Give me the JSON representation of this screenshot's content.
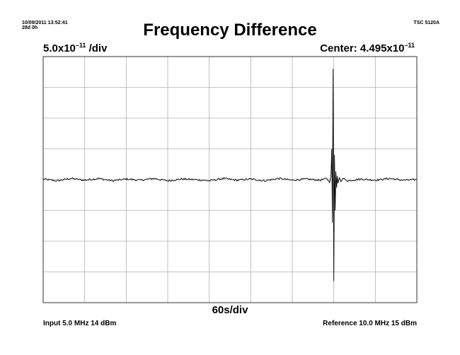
{
  "header": {
    "timestamp_line1": "10/09/2011 13:52:41",
    "timestamp_line2": "28d 0h",
    "model": "TSC 5120A",
    "title": "Frequency Difference"
  },
  "scale": {
    "prefix": "5.0x10",
    "exponent": "–11",
    "suffix": " /div"
  },
  "center": {
    "prefix": "Center: 4.495x10",
    "exponent": "–11"
  },
  "x_scale_label": "60s/div",
  "footer": {
    "input": "Input 5.0 MHz 14 dBm",
    "reference": "Reference 10.0 MHz 15 dBm"
  },
  "colors": {
    "trace": "#000000",
    "grid": "#b0b0b0",
    "frame": "#000000"
  },
  "chart_data": {
    "type": "line",
    "title": "Frequency Difference",
    "xlabel": "60s/div",
    "ylabel": "5.0x10–11 /div",
    "x_divisions": 9,
    "y_divisions": 8,
    "x_unit_per_div": 60,
    "y_unit_per_div": 5e-11,
    "y_center": 4.495e-11,
    "xlim": [
      0,
      540
    ],
    "ylim": [
      -2e-10,
      2e-10
    ],
    "grid": true,
    "series": [
      {
        "x": [
          0,
          20,
          40,
          60,
          80,
          100,
          120,
          140,
          160,
          180,
          200,
          220,
          240,
          260,
          280,
          300,
          320,
          340,
          360,
          380,
          400,
          410,
          414,
          416,
          417,
          418,
          419,
          420,
          421,
          422,
          423,
          424,
          425,
          426,
          428,
          430,
          434,
          440,
          460,
          480,
          500,
          520,
          540
        ],
        "y": [
          1e-12,
          -2e-12,
          2e-12,
          -1e-12,
          2e-12,
          -2e-12,
          1e-12,
          -1e-12,
          2e-12,
          -2e-12,
          1e-12,
          0,
          -2e-12,
          2e-12,
          -1e-12,
          1e-12,
          -2e-12,
          2e-12,
          -1e-12,
          1e-12,
          -1e-12,
          2e-12,
          -5e-12,
          8e-12,
          5e-11,
          -7e-11,
          1.8e-10,
          -1.65e-10,
          4e-11,
          -5e-11,
          1.3e-11,
          -1.3e-11,
          6e-12,
          -6e-12,
          3e-12,
          -2e-12,
          2e-12,
          -2e-12,
          1e-12,
          -1e-12,
          2e-12,
          -1e-12,
          0
        ]
      }
    ]
  }
}
